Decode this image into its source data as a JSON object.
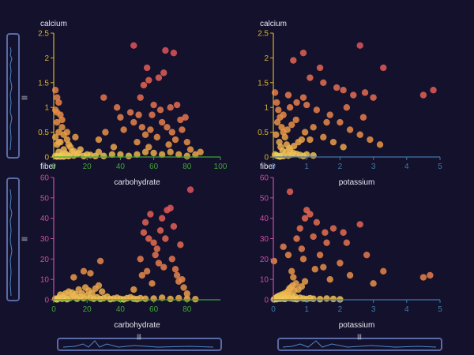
{
  "colors": {
    "background": "#14112c",
    "y_axis_top": "#d6b22a",
    "y_axis_bottom": "#c94fa3",
    "x_axis_left": "#3fa535",
    "x_axis_right": "#3f79a8",
    "point_low": "#f2dc5d",
    "point_mid": "#e89445",
    "point_high": "#e2525a",
    "slider": "#5a6aa6"
  },
  "sliders": {
    "handle_glyph": "|||"
  },
  "chart_data": [
    {
      "type": "scatter",
      "panel": "top-left",
      "ylabel": "calcium",
      "xlabel": "carbohydrate",
      "x_ticks": [
        "0",
        "20",
        "40",
        "60",
        "80",
        "100"
      ],
      "y_ticks": [
        "0",
        "0.5",
        "1",
        "1.5",
        "2",
        "2.5"
      ],
      "xlim": [
        0,
        100
      ],
      "ylim": [
        0,
        2.5
      ],
      "points": [
        [
          1,
          1.35
        ],
        [
          2,
          1.2
        ],
        [
          3,
          1.1
        ],
        [
          1,
          0.95
        ],
        [
          4,
          0.85
        ],
        [
          2,
          0.7
        ],
        [
          5,
          0.6
        ],
        [
          3,
          0.5
        ],
        [
          6,
          0.45
        ],
        [
          1,
          0.4
        ],
        [
          8,
          0.35
        ],
        [
          4,
          0.3
        ],
        [
          2,
          0.25
        ],
        [
          10,
          0.2
        ],
        [
          6,
          0.15
        ],
        [
          12,
          0.12
        ],
        [
          3,
          0.1
        ],
        [
          15,
          0.08
        ],
        [
          5,
          0.05
        ],
        [
          20,
          0.05
        ],
        [
          8,
          0.03
        ],
        [
          25,
          0.02
        ],
        [
          30,
          0.02
        ],
        [
          1,
          0.02
        ],
        [
          2,
          0.01
        ],
        [
          4,
          0.01
        ],
        [
          6,
          0.01
        ],
        [
          9,
          0.02
        ],
        [
          12,
          0.03
        ],
        [
          18,
          0.02
        ],
        [
          22,
          0.04
        ],
        [
          14,
          0.06
        ],
        [
          7,
          0.07
        ],
        [
          11,
          0.1
        ],
        [
          16,
          0.15
        ],
        [
          9,
          0.25
        ],
        [
          3,
          0.3
        ],
        [
          5,
          0.75
        ],
        [
          2,
          0.9
        ],
        [
          8,
          0.5
        ],
        [
          13,
          0.4
        ],
        [
          27,
          0.1
        ],
        [
          35,
          0.05
        ],
        [
          40,
          0.05
        ],
        [
          45,
          0.02
        ],
        [
          50,
          0.05
        ],
        [
          55,
          0.1
        ],
        [
          60,
          0.08
        ],
        [
          65,
          0.05
        ],
        [
          70,
          0.1
        ],
        [
          75,
          0.05
        ],
        [
          80,
          0.02
        ],
        [
          85,
          0.05
        ],
        [
          88,
          0.1
        ],
        [
          48,
          2.25
        ],
        [
          56,
          1.8
        ],
        [
          57,
          1.55
        ],
        [
          54,
          1.45
        ],
        [
          67,
          2.15
        ],
        [
          72,
          2.1
        ],
        [
          66,
          1.7
        ],
        [
          63,
          1.6
        ],
        [
          52,
          1.2
        ],
        [
          60,
          1.05
        ],
        [
          70,
          1.0
        ],
        [
          74,
          1.05
        ],
        [
          51,
          0.85
        ],
        [
          48,
          0.7
        ],
        [
          53,
          0.6
        ],
        [
          55,
          0.45
        ],
        [
          58,
          0.55
        ],
        [
          62,
          0.4
        ],
        [
          65,
          0.7
        ],
        [
          68,
          0.6
        ],
        [
          71,
          0.5
        ],
        [
          76,
          0.75
        ],
        [
          79,
          0.8
        ],
        [
          77,
          0.55
        ],
        [
          73,
          0.35
        ],
        [
          69,
          0.25
        ],
        [
          57,
          0.2
        ],
        [
          50,
          0.3
        ],
        [
          46,
          0.9
        ],
        [
          59,
          0.85
        ],
        [
          64,
          0.95
        ],
        [
          80,
          0.3
        ],
        [
          82,
          0.15
        ],
        [
          42,
          0.55
        ],
        [
          40,
          0.8
        ],
        [
          38,
          1.0
        ],
        [
          36,
          0.2
        ],
        [
          30,
          1.2
        ],
        [
          27,
          0.35
        ],
        [
          31,
          0.5
        ]
      ]
    },
    {
      "type": "scatter",
      "panel": "top-right",
      "ylabel": "calcium",
      "xlabel": "potassium",
      "x_ticks": [
        "0",
        "1",
        "2",
        "3",
        "4",
        "5"
      ],
      "y_ticks": [
        "0",
        "0.5",
        "1",
        "1.5",
        "2",
        "2.5"
      ],
      "xlim": [
        0,
        5
      ],
      "ylim": [
        0,
        2.5
      ],
      "points": [
        [
          0.05,
          1.3
        ],
        [
          0.1,
          1.1
        ],
        [
          0.15,
          0.95
        ],
        [
          0.2,
          0.8
        ],
        [
          0.12,
          0.7
        ],
        [
          0.25,
          0.6
        ],
        [
          0.3,
          0.5
        ],
        [
          0.08,
          0.45
        ],
        [
          0.35,
          0.4
        ],
        [
          0.18,
          0.3
        ],
        [
          0.4,
          0.25
        ],
        [
          0.22,
          0.2
        ],
        [
          0.5,
          0.15
        ],
        [
          0.28,
          0.12
        ],
        [
          0.6,
          0.08
        ],
        [
          0.05,
          0.05
        ],
        [
          0.1,
          0.03
        ],
        [
          0.15,
          0.02
        ],
        [
          0.2,
          0.01
        ],
        [
          0.3,
          0.02
        ],
        [
          0.45,
          0.03
        ],
        [
          0.55,
          0.05
        ],
        [
          0.7,
          0.06
        ],
        [
          0.8,
          0.04
        ],
        [
          0.9,
          0.02
        ],
        [
          1.0,
          0.05
        ],
        [
          1.2,
          0.03
        ],
        [
          0.38,
          0.1
        ],
        [
          0.48,
          0.18
        ],
        [
          0.62,
          0.22
        ],
        [
          0.75,
          0.3
        ],
        [
          0.85,
          0.35
        ],
        [
          0.42,
          0.55
        ],
        [
          0.55,
          0.65
        ],
        [
          0.68,
          0.75
        ],
        [
          0.3,
          0.85
        ],
        [
          0.5,
          1.0
        ],
        [
          0.7,
          1.1
        ],
        [
          0.9,
          1.2
        ],
        [
          0.45,
          1.25
        ],
        [
          0.9,
          2.1
        ],
        [
          0.6,
          1.95
        ],
        [
          1.4,
          1.8
        ],
        [
          2.6,
          2.25
        ],
        [
          3.3,
          1.8
        ],
        [
          1.1,
          1.6
        ],
        [
          1.5,
          1.5
        ],
        [
          1.9,
          1.4
        ],
        [
          2.1,
          1.35
        ],
        [
          2.4,
          1.25
        ],
        [
          2.75,
          1.3
        ],
        [
          3.0,
          1.2
        ],
        [
          4.5,
          1.25
        ],
        [
          4.8,
          1.35
        ],
        [
          1.0,
          1.05
        ],
        [
          1.3,
          0.95
        ],
        [
          1.7,
          0.85
        ],
        [
          2.0,
          0.7
        ],
        [
          2.3,
          0.55
        ],
        [
          2.6,
          0.45
        ],
        [
          2.9,
          0.35
        ],
        [
          3.2,
          0.25
        ],
        [
          1.2,
          0.6
        ],
        [
          1.5,
          0.4
        ],
        [
          1.8,
          0.3
        ],
        [
          2.1,
          0.2
        ],
        [
          1.1,
          0.35
        ],
        [
          0.95,
          0.5
        ],
        [
          1.6,
          0.7
        ],
        [
          2.2,
          1.0
        ],
        [
          2.7,
          0.8
        ]
      ]
    },
    {
      "type": "scatter",
      "panel": "bottom-left",
      "ylabel": "fiber",
      "xlabel": "carbohydrate",
      "x_ticks": [
        "0",
        "20",
        "40",
        "60",
        "80"
      ],
      "y_ticks": [
        "0",
        "10",
        "20",
        "30",
        "40",
        "50",
        "60"
      ],
      "xlim": [
        0,
        100
      ],
      "ylim": [
        0,
        60
      ],
      "points": [
        [
          1,
          0.5
        ],
        [
          2,
          0.2
        ],
        [
          3,
          1
        ],
        [
          5,
          0.5
        ],
        [
          6,
          1.5
        ],
        [
          8,
          0.3
        ],
        [
          10,
          1
        ],
        [
          12,
          2
        ],
        [
          14,
          0.5
        ],
        [
          16,
          1.5
        ],
        [
          18,
          0.8
        ],
        [
          20,
          2
        ],
        [
          22,
          1
        ],
        [
          24,
          0.5
        ],
        [
          26,
          1.2
        ],
        [
          28,
          0.4
        ],
        [
          30,
          0.8
        ],
        [
          32,
          1.5
        ],
        [
          34,
          0.3
        ],
        [
          36,
          0.6
        ],
        [
          38,
          1
        ],
        [
          40,
          0.4
        ],
        [
          42,
          0.2
        ],
        [
          44,
          0.8
        ],
        [
          46,
          1.2
        ],
        [
          48,
          0.5
        ],
        [
          50,
          0.3
        ],
        [
          52,
          0.8
        ],
        [
          55,
          0.5
        ],
        [
          60,
          0.6
        ],
        [
          65,
          1
        ],
        [
          70,
          0.4
        ],
        [
          75,
          0.8
        ],
        [
          80,
          0.5
        ],
        [
          85,
          0.3
        ],
        [
          4,
          2.5
        ],
        [
          7,
          3
        ],
        [
          9,
          4
        ],
        [
          11,
          3.5
        ],
        [
          13,
          2.8
        ],
        [
          15,
          5
        ],
        [
          17,
          3
        ],
        [
          19,
          6
        ],
        [
          21,
          4.5
        ],
        [
          23,
          3.2
        ],
        [
          25,
          5.5
        ],
        [
          27,
          7
        ],
        [
          29,
          4
        ],
        [
          12,
          11
        ],
        [
          18,
          14
        ],
        [
          22,
          13
        ],
        [
          28,
          19
        ],
        [
          48,
          5
        ],
        [
          52,
          20
        ],
        [
          55,
          38
        ],
        [
          57,
          30
        ],
        [
          58,
          42
        ],
        [
          60,
          28
        ],
        [
          61,
          22
        ],
        [
          63,
          18
        ],
        [
          64,
          34
        ],
        [
          66,
          16
        ],
        [
          68,
          44
        ],
        [
          70,
          45
        ],
        [
          72,
          36
        ],
        [
          74,
          12
        ],
        [
          75,
          9
        ],
        [
          76,
          27
        ],
        [
          78,
          6
        ],
        [
          80,
          3
        ],
        [
          82,
          54
        ],
        [
          62,
          25
        ],
        [
          56,
          14
        ],
        [
          59,
          8
        ],
        [
          53,
          12
        ],
        [
          67,
          30
        ],
        [
          71,
          20
        ],
        [
          73,
          15
        ],
        [
          77,
          10
        ],
        [
          65,
          40
        ],
        [
          54,
          33
        ]
      ]
    },
    {
      "type": "scatter",
      "panel": "bottom-right",
      "ylabel": "fiber",
      "xlabel": "potassium",
      "x_ticks": [
        "0",
        "1",
        "2",
        "3",
        "4",
        "5"
      ],
      "y_ticks": [
        "0",
        "10",
        "20",
        "30",
        "40",
        "50",
        "60"
      ],
      "xlim": [
        0,
        5
      ],
      "ylim": [
        0,
        60
      ],
      "points": [
        [
          0.02,
          0.2
        ],
        [
          0.05,
          0.5
        ],
        [
          0.08,
          1
        ],
        [
          0.1,
          0.3
        ],
        [
          0.12,
          1.5
        ],
        [
          0.15,
          0.8
        ],
        [
          0.18,
          2
        ],
        [
          0.2,
          0.5
        ],
        [
          0.22,
          1.2
        ],
        [
          0.25,
          2.5
        ],
        [
          0.28,
          0.6
        ],
        [
          0.3,
          1.8
        ],
        [
          0.33,
          3
        ],
        [
          0.35,
          0.4
        ],
        [
          0.38,
          2.2
        ],
        [
          0.4,
          1
        ],
        [
          0.45,
          3.5
        ],
        [
          0.5,
          0.8
        ],
        [
          0.55,
          2
        ],
        [
          0.6,
          0.5
        ],
        [
          0.65,
          1.5
        ],
        [
          0.7,
          0.3
        ],
        [
          0.8,
          1
        ],
        [
          0.9,
          0.6
        ],
        [
          1.0,
          0.4
        ],
        [
          1.1,
          0.8
        ],
        [
          1.2,
          0.5
        ],
        [
          1.4,
          0.3
        ],
        [
          1.6,
          0.6
        ],
        [
          1.8,
          0.4
        ],
        [
          2.0,
          0.2
        ],
        [
          0.42,
          4
        ],
        [
          0.48,
          5.5
        ],
        [
          0.52,
          6
        ],
        [
          0.58,
          7
        ],
        [
          0.62,
          4.5
        ],
        [
          0.68,
          8
        ],
        [
          0.75,
          5
        ],
        [
          0.85,
          6.5
        ],
        [
          0.95,
          9
        ],
        [
          0.02,
          19
        ],
        [
          0.5,
          53
        ],
        [
          0.3,
          26
        ],
        [
          0.45,
          22
        ],
        [
          0.55,
          14
        ],
        [
          0.6,
          11
        ],
        [
          0.8,
          35
        ],
        [
          0.85,
          25
        ],
        [
          0.95,
          40
        ],
        [
          1.0,
          44
        ],
        [
          1.1,
          42
        ],
        [
          1.2,
          31
        ],
        [
          1.3,
          38
        ],
        [
          1.4,
          22
        ],
        [
          1.5,
          16
        ],
        [
          1.6,
          28
        ],
        [
          1.7,
          10
        ],
        [
          1.8,
          35
        ],
        [
          2.0,
          18
        ],
        [
          2.1,
          33
        ],
        [
          2.2,
          28
        ],
        [
          2.3,
          12
        ],
        [
          2.6,
          37
        ],
        [
          2.8,
          22
        ],
        [
          3.0,
          8
        ],
        [
          3.3,
          14
        ],
        [
          4.5,
          11
        ],
        [
          4.7,
          12
        ],
        [
          0.7,
          30
        ],
        [
          0.9,
          20
        ],
        [
          1.25,
          15
        ],
        [
          1.55,
          33
        ]
      ]
    }
  ]
}
